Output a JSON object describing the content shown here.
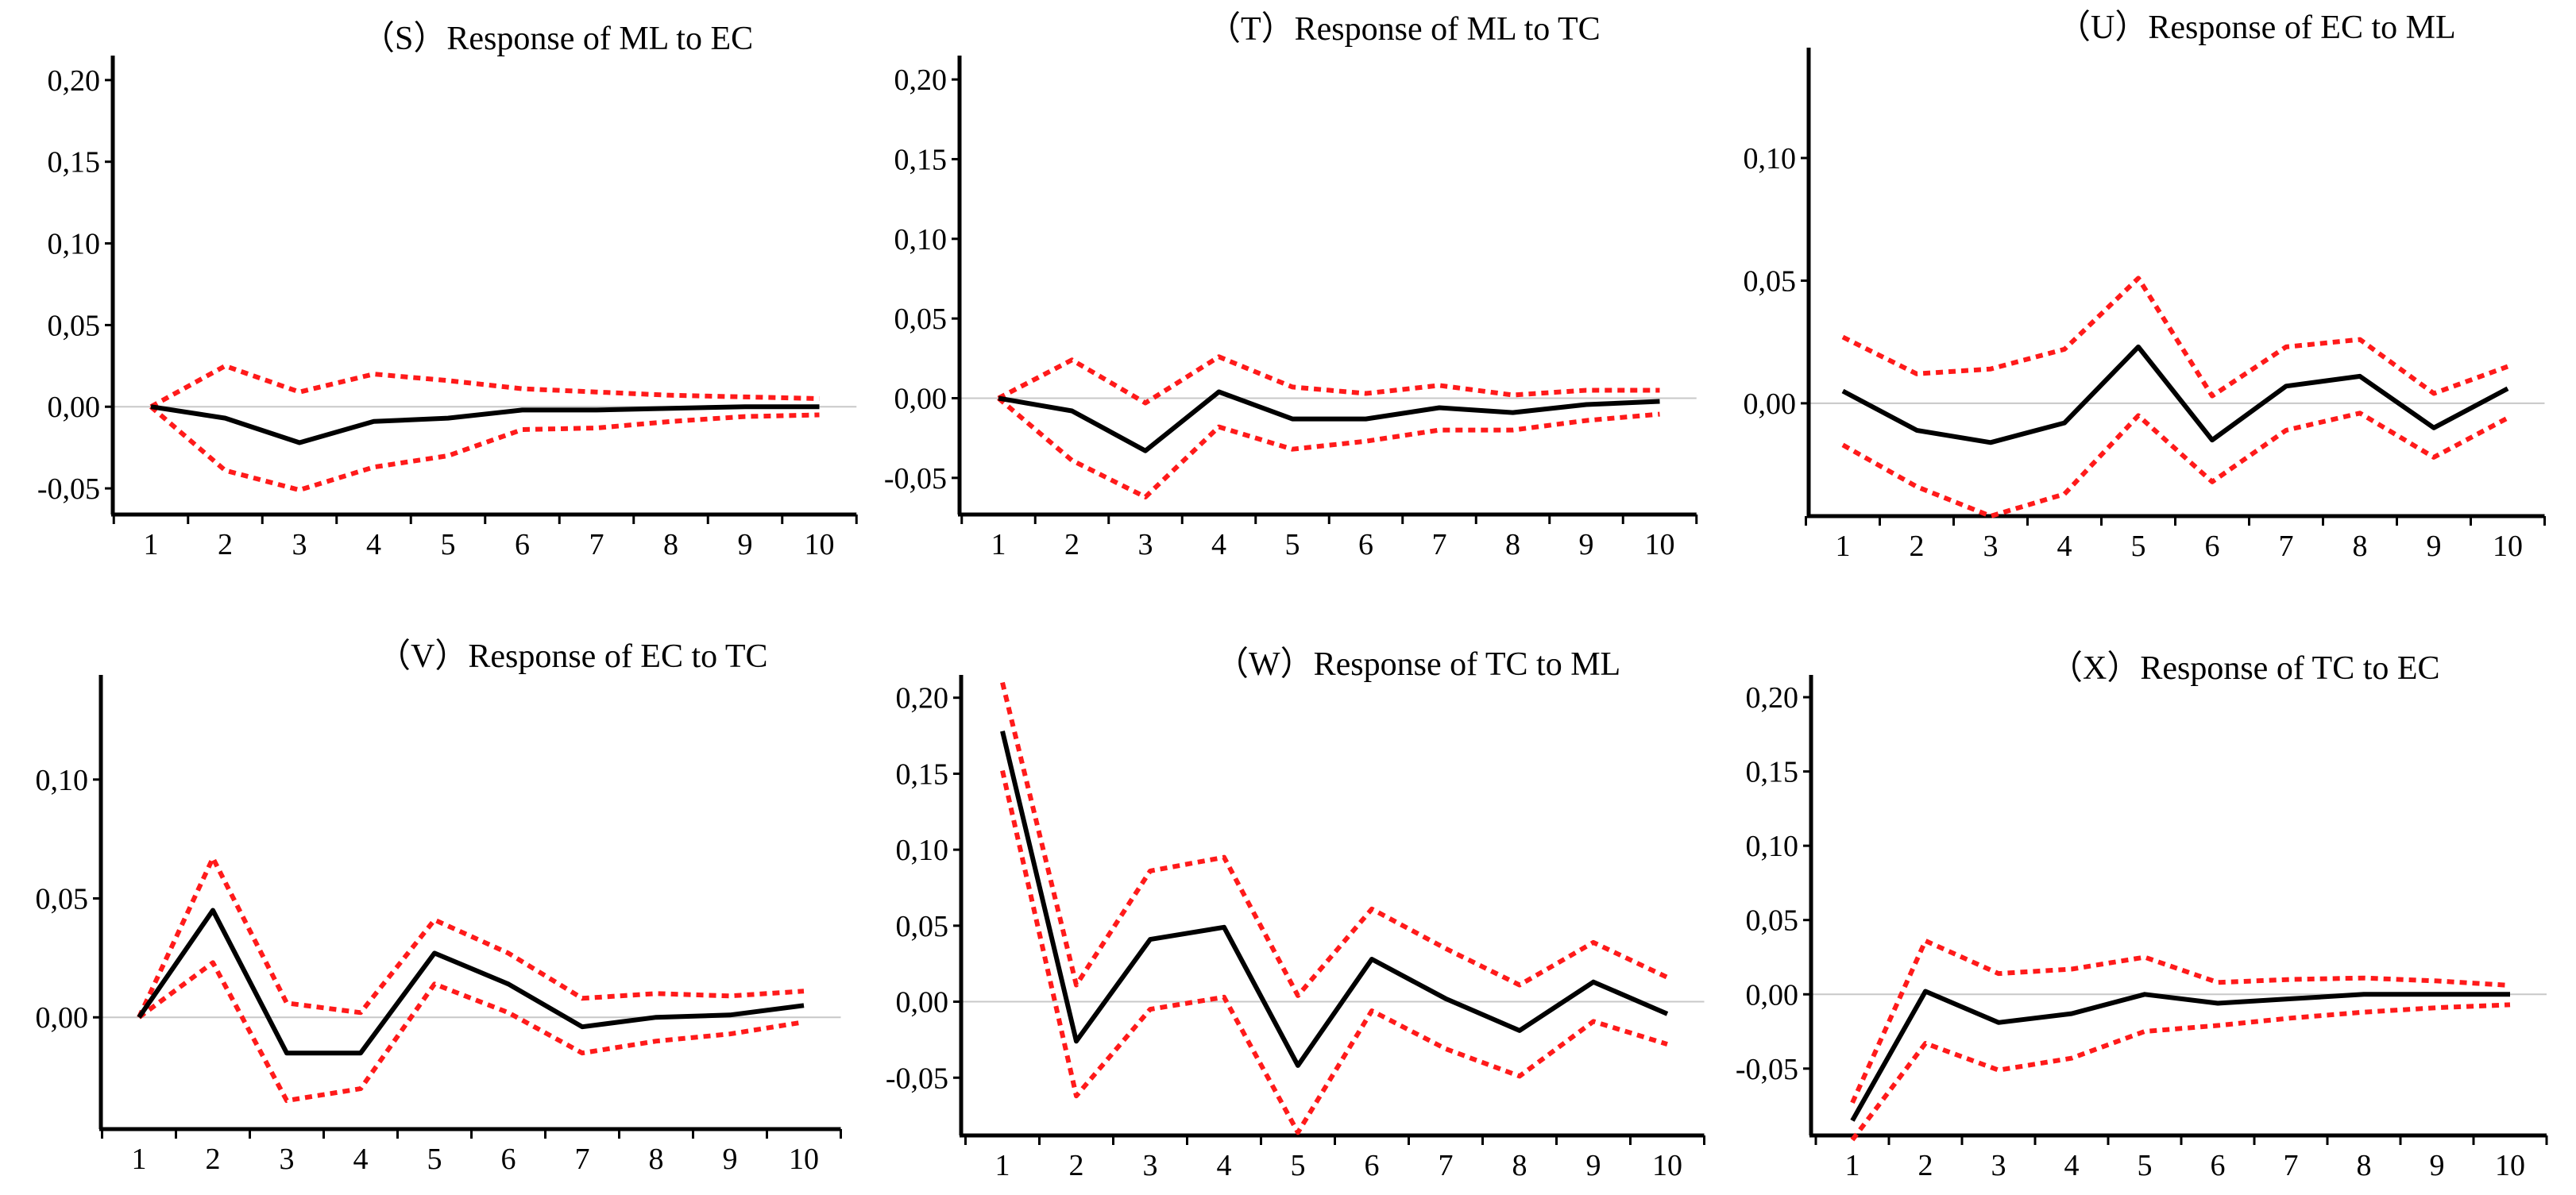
{
  "chart_data": [
    {
      "type": "line",
      "title": "（S）Response of ML to EC",
      "x": [
        1,
        2,
        3,
        4,
        5,
        6,
        7,
        8,
        9,
        10
      ],
      "x_tick_labels": [
        "1",
        "2",
        "3",
        "4",
        "5",
        "6",
        "7",
        "8",
        "9",
        "10"
      ],
      "y_tick_labels": [
        "0,20",
        "0,15",
        "0,10",
        "0,05",
        "0,00",
        "-0,05"
      ],
      "y_tick_values": [
        0.2,
        0.15,
        0.1,
        0.05,
        0.0,
        -0.05
      ],
      "ylim": [
        -0.066,
        0.215
      ],
      "series": [
        {
          "role": "response",
          "color": "#000000",
          "values": [
            0.0,
            -0.007,
            -0.022,
            -0.009,
            -0.007,
            -0.002,
            -0.002,
            -0.001,
            0.0,
            0.0
          ]
        },
        {
          "role": "upper",
          "color": "#ff1a1a",
          "values": [
            0.0,
            0.025,
            0.009,
            0.02,
            0.016,
            0.011,
            0.009,
            0.007,
            0.006,
            0.005
          ]
        },
        {
          "role": "lower",
          "color": "#ff1a1a",
          "values": [
            0.0,
            -0.039,
            -0.051,
            -0.037,
            -0.03,
            -0.014,
            -0.013,
            -0.009,
            -0.006,
            -0.005
          ]
        }
      ]
    },
    {
      "type": "line",
      "title": "（T）Response of ML to TC",
      "x": [
        1,
        2,
        3,
        4,
        5,
        6,
        7,
        8,
        9,
        10
      ],
      "x_tick_labels": [
        "1",
        "2",
        "3",
        "4",
        "5",
        "6",
        "7",
        "8",
        "9",
        "10"
      ],
      "y_tick_labels": [
        "0,20",
        "0,15",
        "0,10",
        "0,05",
        "0,00",
        "-0,05"
      ],
      "y_tick_values": [
        0.2,
        0.15,
        0.1,
        0.05,
        0.0,
        -0.05
      ],
      "ylim": [
        -0.073,
        0.215
      ],
      "series": [
        {
          "role": "response",
          "color": "#000000",
          "values": [
            0.0,
            -0.008,
            -0.033,
            0.004,
            -0.013,
            -0.013,
            -0.006,
            -0.009,
            -0.004,
            -0.002
          ]
        },
        {
          "role": "upper",
          "color": "#ff1a1a",
          "values": [
            0.0,
            0.024,
            -0.003,
            0.026,
            0.007,
            0.003,
            0.008,
            0.002,
            0.005,
            0.005
          ]
        },
        {
          "role": "lower",
          "color": "#ff1a1a",
          "values": [
            0.0,
            -0.039,
            -0.062,
            -0.018,
            -0.032,
            -0.027,
            -0.02,
            -0.02,
            -0.014,
            -0.01
          ]
        }
      ]
    },
    {
      "type": "line",
      "title": "（U）Response of EC to ML",
      "x": [
        1,
        2,
        3,
        4,
        5,
        6,
        7,
        8,
        9,
        10
      ],
      "x_tick_labels": [
        "1",
        "2",
        "3",
        "4",
        "5",
        "6",
        "7",
        "8",
        "9",
        "10"
      ],
      "y_tick_labels": [
        "0,10",
        "0,05",
        "0,00"
      ],
      "y_tick_values": [
        0.1,
        0.05,
        0.0
      ],
      "ylim": [
        -0.046,
        0.145
      ],
      "series": [
        {
          "role": "response",
          "color": "#000000",
          "values": [
            0.005,
            -0.011,
            -0.016,
            -0.008,
            0.023,
            -0.015,
            0.007,
            0.011,
            -0.01,
            0.006
          ]
        },
        {
          "role": "upper",
          "color": "#ff1a1a",
          "values": [
            0.027,
            0.012,
            0.014,
            0.022,
            0.051,
            0.003,
            0.023,
            0.026,
            0.004,
            0.015
          ]
        },
        {
          "role": "lower",
          "color": "#ff1a1a",
          "values": [
            -0.017,
            -0.034,
            -0.046,
            -0.037,
            -0.005,
            -0.032,
            -0.011,
            -0.004,
            -0.022,
            -0.006
          ]
        }
      ]
    },
    {
      "type": "line",
      "title": "（V）Response of EC to TC",
      "x": [
        1,
        2,
        3,
        4,
        5,
        6,
        7,
        8,
        9,
        10
      ],
      "x_tick_labels": [
        "1",
        "2",
        "3",
        "4",
        "5",
        "6",
        "7",
        "8",
        "9",
        "10"
      ],
      "y_tick_labels": [
        "0,10",
        "0,05",
        "0,00"
      ],
      "y_tick_values": [
        0.1,
        0.05,
        0.0
      ],
      "ylim": [
        -0.047,
        0.144
      ],
      "series": [
        {
          "role": "response",
          "color": "#000000",
          "values": [
            0.0,
            0.045,
            -0.015,
            -0.015,
            0.027,
            0.014,
            -0.004,
            0.0,
            0.001,
            0.005
          ]
        },
        {
          "role": "upper",
          "color": "#ff1a1a",
          "values": [
            0.0,
            0.067,
            0.006,
            0.002,
            0.041,
            0.027,
            0.008,
            0.01,
            0.009,
            0.011
          ]
        },
        {
          "role": "lower",
          "color": "#ff1a1a",
          "values": [
            0.0,
            0.023,
            -0.035,
            -0.03,
            0.014,
            0.002,
            -0.015,
            -0.01,
            -0.007,
            -0.002
          ]
        }
      ]
    },
    {
      "type": "line",
      "title": "（W）Response of TC to ML",
      "x": [
        1,
        2,
        3,
        4,
        5,
        6,
        7,
        8,
        9,
        10
      ],
      "x_tick_labels": [
        "1",
        "2",
        "3",
        "4",
        "5",
        "6",
        "7",
        "8",
        "9",
        "10"
      ],
      "y_tick_labels": [
        "0,20",
        "0,15",
        "0,10",
        "0,05",
        "0,00",
        "-0,05"
      ],
      "y_tick_values": [
        0.2,
        0.15,
        0.1,
        0.05,
        0.0,
        -0.05
      ],
      "ylim": [
        -0.088,
        0.215
      ],
      "series": [
        {
          "role": "response",
          "color": "#000000",
          "values": [
            0.178,
            -0.026,
            0.041,
            0.049,
            -0.042,
            0.028,
            0.002,
            -0.019,
            0.013,
            -0.008
          ]
        },
        {
          "role": "upper",
          "color": "#ff1a1a",
          "values": [
            0.21,
            0.011,
            0.086,
            0.095,
            0.004,
            0.061,
            0.035,
            0.011,
            0.039,
            0.016
          ]
        },
        {
          "role": "lower",
          "color": "#ff1a1a",
          "values": [
            0.152,
            -0.062,
            -0.005,
            0.003,
            -0.086,
            -0.006,
            -0.031,
            -0.049,
            -0.013,
            -0.028
          ]
        }
      ]
    },
    {
      "type": "line",
      "title": "（X）Response of TC to EC",
      "x": [
        1,
        2,
        3,
        4,
        5,
        6,
        7,
        8,
        9,
        10
      ],
      "x_tick_labels": [
        "1",
        "2",
        "3",
        "4",
        "5",
        "6",
        "7",
        "8",
        "9",
        "10"
      ],
      "y_tick_labels": [
        "0,20",
        "0,15",
        "0,10",
        "0,05",
        "0,00",
        "-0,05"
      ],
      "y_tick_values": [
        0.2,
        0.15,
        0.1,
        0.05,
        0.0,
        -0.05
      ],
      "ylim": [
        -0.095,
        0.215
      ],
      "series": [
        {
          "role": "response",
          "color": "#000000",
          "values": [
            -0.085,
            0.002,
            -0.019,
            -0.013,
            0.0,
            -0.006,
            -0.003,
            0.0,
            0.0,
            0.0
          ]
        },
        {
          "role": "upper",
          "color": "#ff1a1a",
          "values": [
            -0.073,
            0.036,
            0.014,
            0.017,
            0.025,
            0.008,
            0.01,
            0.011,
            0.009,
            0.006
          ]
        },
        {
          "role": "lower",
          "color": "#ff1a1a",
          "values": [
            -0.098,
            -0.033,
            -0.051,
            -0.043,
            -0.025,
            -0.021,
            -0.016,
            -0.012,
            -0.009,
            -0.007
          ]
        }
      ]
    }
  ]
}
